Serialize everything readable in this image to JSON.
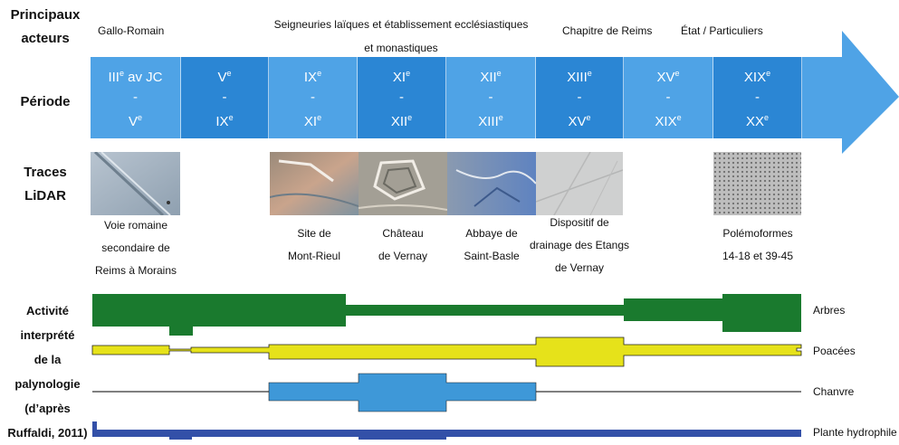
{
  "row_labels": {
    "actors_line1": "Principaux",
    "actors_line2": "acteurs",
    "period": "Période",
    "traces_line1": "Traces",
    "traces_line2": "LiDAR",
    "activity": [
      "Activité",
      "interprété",
      "de la",
      "palynologie",
      "(d’après",
      "Ruffaldi, 2011)"
    ]
  },
  "actors": {
    "gallo_romain": "Gallo-Romain",
    "seigneuries_line1": "Seigneuries laïques et établissement ecclésiastiques",
    "seigneuries_line2": "et monastiques",
    "chapitre": "Chapitre de Reims",
    "etat": "État / Particuliers"
  },
  "periods": [
    {
      "top_base": "III",
      "top_sup": "e",
      "top_suffix": " av JC",
      "dash": "-",
      "bottom_base": "V",
      "bottom_sup": "e"
    },
    {
      "top_base": "V",
      "top_sup": "e",
      "top_suffix": "",
      "dash": "-",
      "bottom_base": "IX",
      "bottom_sup": "e"
    },
    {
      "top_base": "IX",
      "top_sup": "e",
      "top_suffix": "",
      "dash": "-",
      "bottom_base": "XI",
      "bottom_sup": "e"
    },
    {
      "top_base": "XI",
      "top_sup": "e",
      "top_suffix": "",
      "dash": "-",
      "bottom_base": "XII",
      "bottom_sup": "e"
    },
    {
      "top_base": "XII",
      "top_sup": "e",
      "top_suffix": "",
      "dash": "-",
      "bottom_base": "XIII",
      "bottom_sup": "e"
    },
    {
      "top_base": "XIII",
      "top_sup": "e",
      "top_suffix": "",
      "dash": "-",
      "bottom_base": "XV",
      "bottom_sup": "e"
    },
    {
      "top_base": "XV",
      "top_sup": "e",
      "top_suffix": "",
      "dash": "-",
      "bottom_base": "XIX",
      "bottom_sup": "e"
    },
    {
      "top_base": "XIX",
      "top_sup": "e",
      "top_suffix": "",
      "dash": "-",
      "bottom_base": "XX",
      "bottom_sup": "e"
    }
  ],
  "captions": {
    "voie": [
      "Voie romaine",
      "secondaire de",
      "Reims à Morains"
    ],
    "mont_rieul": [
      "Site de",
      "Mont-Rieul"
    ],
    "chateau": [
      "Château",
      "de Vernay"
    ],
    "abbaye": [
      "Abbaye de",
      "Saint-Basle"
    ],
    "drainage": [
      "Dispositif de",
      "drainage des Etangs",
      "de Vernay"
    ],
    "polemo": [
      "Polémoformes",
      "14-18 et 39-45"
    ]
  },
  "palynology": {
    "arbres": "Arbres",
    "poacees": "Poacées",
    "chanvre": "Chanvre",
    "plante": "Plante hydrophile"
  },
  "colors": {
    "arrow_light": "#4fa3e6",
    "arrow_dark": "#2b86d4",
    "arbres": "#1a7a2e",
    "poacees": "#e6e21a",
    "chanvre": "#3e98d8",
    "plante": "#3350a8"
  }
}
